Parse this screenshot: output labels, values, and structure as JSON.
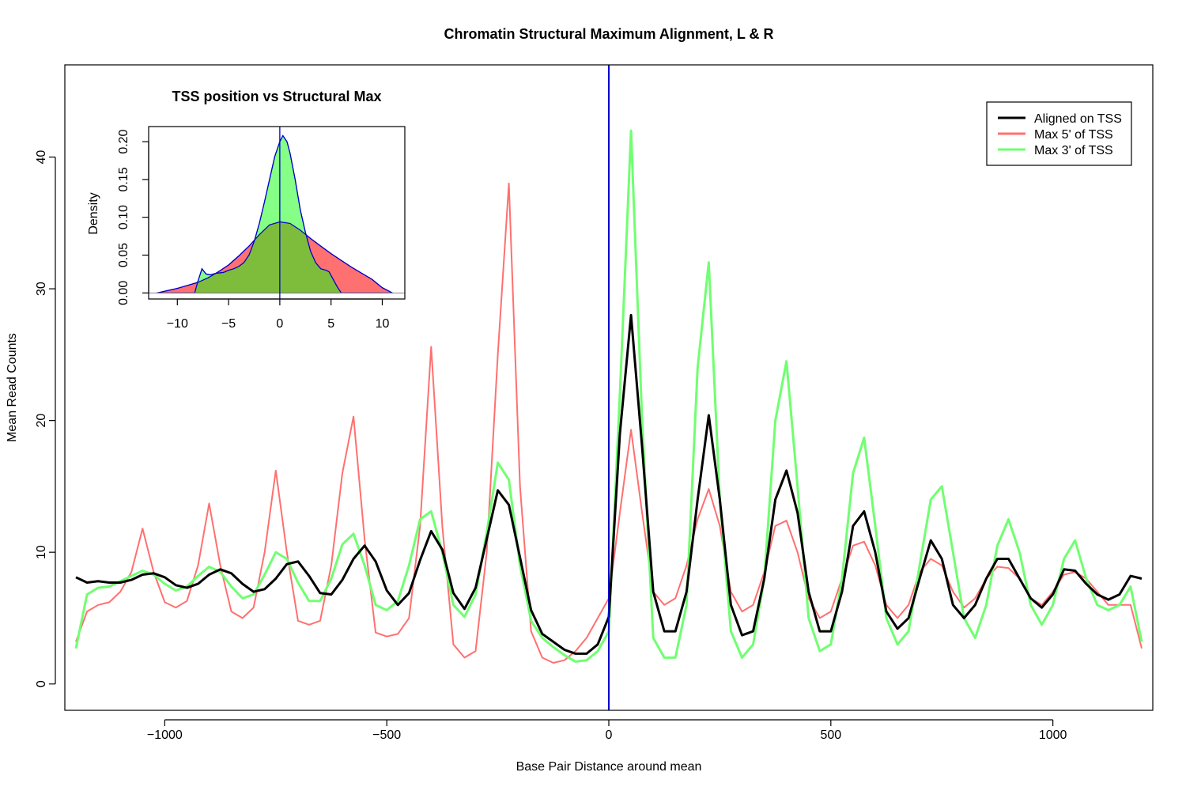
{
  "chart_data": [
    {
      "type": "line",
      "title": "Chromatin Structural Maximum Alignment, L & R",
      "xlabel": "Base Pair Distance around mean",
      "ylabel": "Mean Read Counts",
      "xlim": [
        -1225,
        1225
      ],
      "ylim": [
        -2,
        47
      ],
      "xticks": [
        -1000,
        -500,
        0,
        500,
        1000
      ],
      "xtick_labels": [
        "−1000",
        "−500",
        "0",
        "500",
        "1000"
      ],
      "yticks": [
        0,
        10,
        20,
        30,
        40
      ],
      "ytick_labels": [
        "0",
        "10",
        "20",
        "30",
        "40"
      ],
      "vline_x": 0,
      "vline_color": "#0000cc",
      "grid": false,
      "legend_position": "top-right",
      "series": [
        {
          "name": "Aligned on TSS",
          "color": "#000000",
          "line_width": 3,
          "x": [
            -1200,
            -1175,
            -1150,
            -1125,
            -1100,
            -1075,
            -1050,
            -1025,
            -1000,
            -975,
            -950,
            -925,
            -900,
            -875,
            -850,
            -825,
            -800,
            -775,
            -750,
            -725,
            -700,
            -675,
            -650,
            -625,
            -600,
            -575,
            -550,
            -525,
            -500,
            -475,
            -450,
            -425,
            -400,
            -375,
            -350,
            -325,
            -300,
            -275,
            -250,
            -225,
            -200,
            -175,
            -150,
            -125,
            -100,
            -75,
            -50,
            -25,
            0,
            25,
            50,
            75,
            100,
            125,
            150,
            175,
            200,
            225,
            250,
            275,
            300,
            325,
            350,
            375,
            400,
            425,
            450,
            475,
            500,
            525,
            550,
            575,
            600,
            625,
            650,
            675,
            700,
            725,
            750,
            775,
            800,
            825,
            850,
            875,
            900,
            925,
            950,
            975,
            1000,
            1025,
            1050,
            1075,
            1100,
            1125,
            1150,
            1175,
            1200
          ],
          "y": [
            8.1,
            7.7,
            7.8,
            7.7,
            7.7,
            7.9,
            8.3,
            8.4,
            8.1,
            7.5,
            7.3,
            7.6,
            8.3,
            8.7,
            8.4,
            7.6,
            7.0,
            7.2,
            8.0,
            9.1,
            9.3,
            8.2,
            6.9,
            6.8,
            7.9,
            9.5,
            10.5,
            9.3,
            7.1,
            6.0,
            6.9,
            9.4,
            11.6,
            10.2,
            6.9,
            5.7,
            7.3,
            11.0,
            14.7,
            13.6,
            9.6,
            5.6,
            3.8,
            3.2,
            2.6,
            2.3,
            2.3,
            3.0,
            5.1,
            19.0,
            28.0,
            18.0,
            7.0,
            4.0,
            4.0,
            7.0,
            14.0,
            20.4,
            14.0,
            6.0,
            3.7,
            4.0,
            8.0,
            14.0,
            16.2,
            13.0,
            7.0,
            4.0,
            4.0,
            7.0,
            12.0,
            13.1,
            10.0,
            5.5,
            4.2,
            5.0,
            8.0,
            10.9,
            9.5,
            6.0,
            5.0,
            6.0,
            8.0,
            9.5,
            9.5,
            8.0,
            6.5,
            5.8,
            6.8,
            8.7,
            8.6,
            7.6,
            6.8,
            6.4,
            6.8,
            8.2,
            8.0
          ]
        },
        {
          "name": "Max 5' of TSS",
          "color": "#ff7070",
          "line_width": 2,
          "x": [
            -1200,
            -1175,
            -1150,
            -1125,
            -1100,
            -1075,
            -1050,
            -1025,
            -1000,
            -975,
            -950,
            -925,
            -900,
            -875,
            -850,
            -825,
            -800,
            -775,
            -750,
            -725,
            -700,
            -675,
            -650,
            -625,
            -600,
            -575,
            -550,
            -525,
            -500,
            -475,
            -450,
            -425,
            -400,
            -375,
            -350,
            -325,
            -300,
            -275,
            -250,
            -225,
            -200,
            -175,
            -150,
            -125,
            -100,
            -75,
            -50,
            -25,
            0,
            25,
            50,
            75,
            100,
            125,
            150,
            175,
            200,
            225,
            250,
            275,
            300,
            325,
            350,
            375,
            400,
            425,
            450,
            475,
            500,
            525,
            550,
            575,
            600,
            625,
            650,
            675,
            700,
            725,
            750,
            775,
            800,
            825,
            850,
            875,
            900,
            925,
            950,
            975,
            1000,
            1025,
            1050,
            1075,
            1100,
            1125,
            1150,
            1175,
            1200
          ],
          "y": [
            3.2,
            5.5,
            6.0,
            6.2,
            7.0,
            8.5,
            11.8,
            8.5,
            6.2,
            5.8,
            6.3,
            9.0,
            13.7,
            9.0,
            5.5,
            5.0,
            5.8,
            10.0,
            16.2,
            10.0,
            4.8,
            4.5,
            4.8,
            9.0,
            16.0,
            20.3,
            11.0,
            3.9,
            3.6,
            3.8,
            5.0,
            12.0,
            25.6,
            12.0,
            3.0,
            2.0,
            2.5,
            10.0,
            25.0,
            38.0,
            15.0,
            4.0,
            2.0,
            1.6,
            1.8,
            2.5,
            3.5,
            5.0,
            6.5,
            13.0,
            19.3,
            13.0,
            7.0,
            6.0,
            6.5,
            9.0,
            12.5,
            14.8,
            12.0,
            7.0,
            5.5,
            6.0,
            8.5,
            12.0,
            12.4,
            10.0,
            6.5,
            5.0,
            5.5,
            8.0,
            10.5,
            10.8,
            9.0,
            6.0,
            5.0,
            6.0,
            8.5,
            9.5,
            9.0,
            7.0,
            5.8,
            6.5,
            8.0,
            8.9,
            8.8,
            8.0,
            6.5,
            6.0,
            7.0,
            8.3,
            8.5,
            8.0,
            7.0,
            6.0,
            6.0,
            6.0,
            2.7
          ]
        },
        {
          "name": "Max 3' of TSS",
          "color": "#70ff70",
          "line_width": 3,
          "x": [
            -1200,
            -1175,
            -1150,
            -1125,
            -1100,
            -1075,
            -1050,
            -1025,
            -1000,
            -975,
            -950,
            -925,
            -900,
            -875,
            -850,
            -825,
            -800,
            -775,
            -750,
            -725,
            -700,
            -675,
            -650,
            -625,
            -600,
            -575,
            -550,
            -525,
            -500,
            -475,
            -450,
            -425,
            -400,
            -375,
            -350,
            -325,
            -300,
            -275,
            -250,
            -225,
            -200,
            -175,
            -150,
            -125,
            -100,
            -75,
            -50,
            -25,
            0,
            25,
            50,
            75,
            100,
            125,
            150,
            175,
            200,
            225,
            250,
            275,
            300,
            325,
            350,
            375,
            400,
            425,
            450,
            475,
            500,
            525,
            550,
            575,
            600,
            625,
            650,
            675,
            700,
            725,
            750,
            775,
            800,
            825,
            850,
            875,
            900,
            925,
            950,
            975,
            1000,
            1025,
            1050,
            1075,
            1100,
            1125,
            1150,
            1175,
            1200
          ],
          "y": [
            2.7,
            6.8,
            7.3,
            7.4,
            7.8,
            8.2,
            8.6,
            8.3,
            7.6,
            7.1,
            7.4,
            8.2,
            8.9,
            8.5,
            7.4,
            6.5,
            6.8,
            8.3,
            10.0,
            9.5,
            7.7,
            6.3,
            6.3,
            8.0,
            10.6,
            11.4,
            9.0,
            6.0,
            5.6,
            6.3,
            9.0,
            12.5,
            13.1,
            10.0,
            6.0,
            5.1,
            6.8,
            11.5,
            16.8,
            15.5,
            9.0,
            4.8,
            3.5,
            2.8,
            2.2,
            1.7,
            1.8,
            2.5,
            4.0,
            22.0,
            42.0,
            20.0,
            3.5,
            2.0,
            2.0,
            6.0,
            24.0,
            32.0,
            14.0,
            4.0,
            2.0,
            3.0,
            8.0,
            20.0,
            24.5,
            15.0,
            5.0,
            2.5,
            3.0,
            8.0,
            16.0,
            18.7,
            12.0,
            5.0,
            3.0,
            4.0,
            9.0,
            14.0,
            15.0,
            10.0,
            5.0,
            3.5,
            6.0,
            10.5,
            12.5,
            10.0,
            6.0,
            4.5,
            6.0,
            9.5,
            10.9,
            8.0,
            6.0,
            5.6,
            6.0,
            7.4,
            3.2
          ]
        }
      ]
    },
    {
      "type": "area",
      "title": "TSS position vs Structural Max",
      "xlabel": "",
      "ylabel": "Density",
      "xlim": [
        -12.8,
        12.2
      ],
      "ylim": [
        -0.008,
        0.22
      ],
      "xticks": [
        -10,
        -5,
        0,
        5,
        10
      ],
      "xtick_labels": [
        "−10",
        "−5",
        "0",
        "5",
        "10"
      ],
      "yticks": [
        0.0,
        0.05,
        0.1,
        0.15,
        0.2
      ],
      "ytick_labels": [
        "0.00",
        "0.05",
        "0.10",
        "0.15",
        "0.20"
      ],
      "vline_x": 0,
      "vline_color": "#0000cc",
      "border_color": "#0000cc",
      "grid": false,
      "series": [
        {
          "color": "#ff7070",
          "x": [
            -12,
            -11,
            -10,
            -9,
            -8,
            -7,
            -6,
            -5,
            -4,
            -3,
            -2,
            -1,
            0,
            1,
            2,
            3,
            4,
            5,
            6,
            7,
            8,
            9,
            10,
            11
          ],
          "y": [
            0.0,
            0.003,
            0.006,
            0.01,
            0.014,
            0.02,
            0.028,
            0.037,
            0.049,
            0.062,
            0.077,
            0.09,
            0.094,
            0.092,
            0.083,
            0.072,
            0.062,
            0.052,
            0.043,
            0.034,
            0.026,
            0.018,
            0.007,
            0.0
          ]
        },
        {
          "color": "#70ff70",
          "x": [
            -8.3,
            -8,
            -7.6,
            -7.2,
            -6.8,
            -6.2,
            -5.5,
            -5,
            -4.5,
            -4,
            -3.5,
            -3,
            -2.5,
            -2,
            -1.5,
            -1,
            -0.5,
            0,
            0.3,
            0.7,
            1,
            1.5,
            2,
            2.5,
            3,
            3.5,
            4,
            4.5,
            4.8,
            5.2,
            5.6,
            6
          ],
          "y": [
            0.0,
            0.015,
            0.032,
            0.025,
            0.024,
            0.026,
            0.027,
            0.03,
            0.032,
            0.035,
            0.04,
            0.05,
            0.068,
            0.092,
            0.12,
            0.15,
            0.18,
            0.2,
            0.208,
            0.2,
            0.185,
            0.15,
            0.11,
            0.08,
            0.055,
            0.04,
            0.032,
            0.03,
            0.028,
            0.018,
            0.008,
            0.0
          ]
        }
      ]
    }
  ]
}
